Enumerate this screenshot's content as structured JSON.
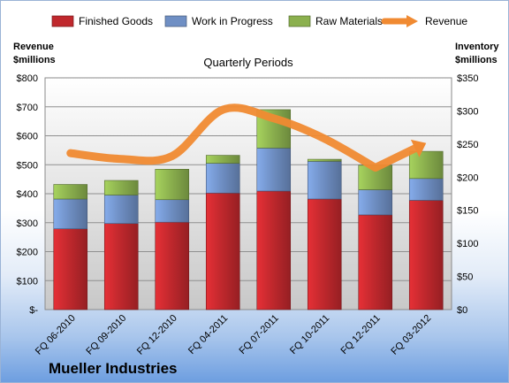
{
  "chart_data": {
    "type": "bar",
    "title": "Mueller Industries",
    "subtitle": "Quarterly Periods",
    "categories": [
      "FQ 06-2010",
      "FQ 09-2010",
      "FQ 12-2010",
      "FQ 04-2011",
      "FQ 07-2011",
      "FQ 10-2011",
      "FQ 12-2011",
      "FQ 03-2012"
    ],
    "series": [
      {
        "name": "Finished Goods",
        "axis": "right",
        "color": "#c0282d",
        "values": [
          122,
          130,
          132,
          176,
          179,
          167,
          143,
          165
        ]
      },
      {
        "name": "Work in Progress",
        "axis": "right",
        "color": "#6f8fc4",
        "values": [
          45,
          43,
          34,
          45,
          65,
          57,
          38,
          33
        ]
      },
      {
        "name": "Raw Materials",
        "axis": "right",
        "color": "#8bb04e",
        "values": [
          22,
          22,
          46,
          12,
          58,
          3,
          37,
          41
        ]
      },
      {
        "name": "Revenue",
        "type": "line",
        "axis": "left",
        "color": "#f08a32",
        "values": [
          540,
          520,
          530,
          690,
          660,
          590,
          490,
          575
        ]
      }
    ],
    "ylabel_left": [
      "Revenue",
      "$millions"
    ],
    "ylabel_right": [
      "Inventory",
      "$millions"
    ],
    "ylim_left": [
      0,
      800
    ],
    "ylim_right": [
      0,
      350
    ],
    "yticks_left": [
      "$-",
      "$100",
      "$200",
      "$300",
      "$400",
      "$500",
      "$600",
      "$700",
      "$800"
    ],
    "yticks_right": [
      "$0",
      "$50",
      "$100",
      "$150",
      "$200",
      "$250",
      "$300",
      "$350"
    ],
    "grid": true,
    "legend": "top"
  }
}
